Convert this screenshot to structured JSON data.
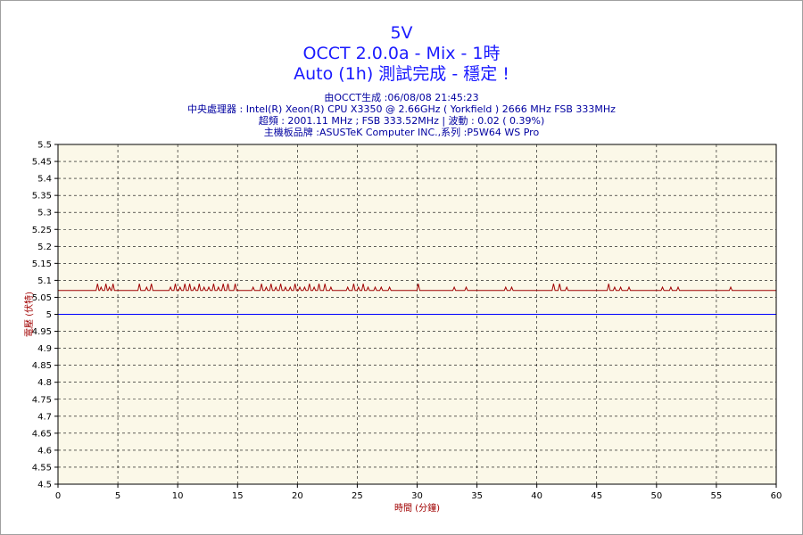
{
  "titles": {
    "line1": "5V",
    "line2": "OCCT 2.0.0a - Mix - 1時",
    "line3": "Auto (1h) 測試完成 - 穩定 !"
  },
  "info": {
    "line1": "由OCCT生成 :06/08/08 21:45:23",
    "line2": "中央處理器 : Intel(R) Xeon(R) CPU X3350 @ 2.66GHz ( Yorkfield ) 2666 MHz FSB 333MHz",
    "line3": "超頻 : 2001.11 MHz ; FSB 333.52MHz | 波動 : 0.02 ( 0.39%)",
    "line4": "主機板品牌 :ASUSTeK Computer INC.,系列 :P5W64 WS Pro"
  },
  "colors": {
    "plot_background": "#fbf8e8",
    "series_voltage": "#a00000",
    "reference_line": "#0000ff",
    "grid": "#000000",
    "title": "#1a1aff",
    "info": "#0000a0",
    "axis_label": "#a00000"
  },
  "chart_data": {
    "type": "line",
    "title": "5V",
    "xlabel": "時間 (分鐘)",
    "ylabel": "電壓 (伏特)",
    "xlim": [
      0,
      60
    ],
    "ylim": [
      4.5,
      5.5
    ],
    "xticks": [
      0,
      5,
      10,
      15,
      20,
      25,
      30,
      35,
      40,
      45,
      50,
      55,
      60
    ],
    "yticks": [
      5.5,
      5.45,
      5.4,
      5.35,
      5.3,
      5.25,
      5.2,
      5.15,
      5.1,
      5.05,
      5,
      4.95,
      4.9,
      4.85,
      4.8,
      4.75,
      4.7,
      4.65,
      4.6,
      4.55,
      4.5
    ],
    "grid": true,
    "baseline": 5.07,
    "spikes": [
      [
        3.3,
        5.09
      ],
      [
        3.6,
        5.08
      ],
      [
        4.0,
        5.09
      ],
      [
        4.3,
        5.08
      ],
      [
        4.6,
        5.09
      ],
      [
        6.8,
        5.09
      ],
      [
        7.4,
        5.08
      ],
      [
        7.8,
        5.09
      ],
      [
        9.4,
        5.08
      ],
      [
        9.8,
        5.09
      ],
      [
        10.2,
        5.08
      ],
      [
        10.6,
        5.09
      ],
      [
        11.0,
        5.09
      ],
      [
        11.4,
        5.08
      ],
      [
        11.8,
        5.09
      ],
      [
        12.2,
        5.08
      ],
      [
        12.6,
        5.08
      ],
      [
        13.0,
        5.09
      ],
      [
        13.4,
        5.08
      ],
      [
        13.8,
        5.09
      ],
      [
        14.2,
        5.09
      ],
      [
        14.8,
        5.09
      ],
      [
        16.3,
        5.08
      ],
      [
        17.0,
        5.09
      ],
      [
        17.4,
        5.08
      ],
      [
        17.8,
        5.09
      ],
      [
        18.2,
        5.08
      ],
      [
        18.6,
        5.09
      ],
      [
        19.0,
        5.08
      ],
      [
        19.4,
        5.08
      ],
      [
        19.8,
        5.09
      ],
      [
        20.2,
        5.08
      ],
      [
        20.6,
        5.08
      ],
      [
        21.0,
        5.09
      ],
      [
        21.4,
        5.08
      ],
      [
        21.8,
        5.09
      ],
      [
        22.3,
        5.09
      ],
      [
        22.8,
        5.08
      ],
      [
        24.2,
        5.08
      ],
      [
        24.7,
        5.09
      ],
      [
        25.1,
        5.08
      ],
      [
        25.5,
        5.09
      ],
      [
        25.9,
        5.08
      ],
      [
        26.5,
        5.08
      ],
      [
        27.0,
        5.08
      ],
      [
        27.7,
        5.08
      ],
      [
        30.1,
        5.09
      ],
      [
        33.1,
        5.08
      ],
      [
        34.1,
        5.08
      ],
      [
        37.4,
        5.08
      ],
      [
        37.9,
        5.08
      ],
      [
        41.4,
        5.09
      ],
      [
        41.9,
        5.09
      ],
      [
        42.5,
        5.08
      ],
      [
        46.0,
        5.09
      ],
      [
        46.5,
        5.08
      ],
      [
        47.0,
        5.08
      ],
      [
        47.7,
        5.08
      ],
      [
        50.5,
        5.08
      ],
      [
        51.2,
        5.08
      ],
      [
        51.8,
        5.08
      ],
      [
        56.2,
        5.08
      ]
    ],
    "reference": 5.0
  }
}
